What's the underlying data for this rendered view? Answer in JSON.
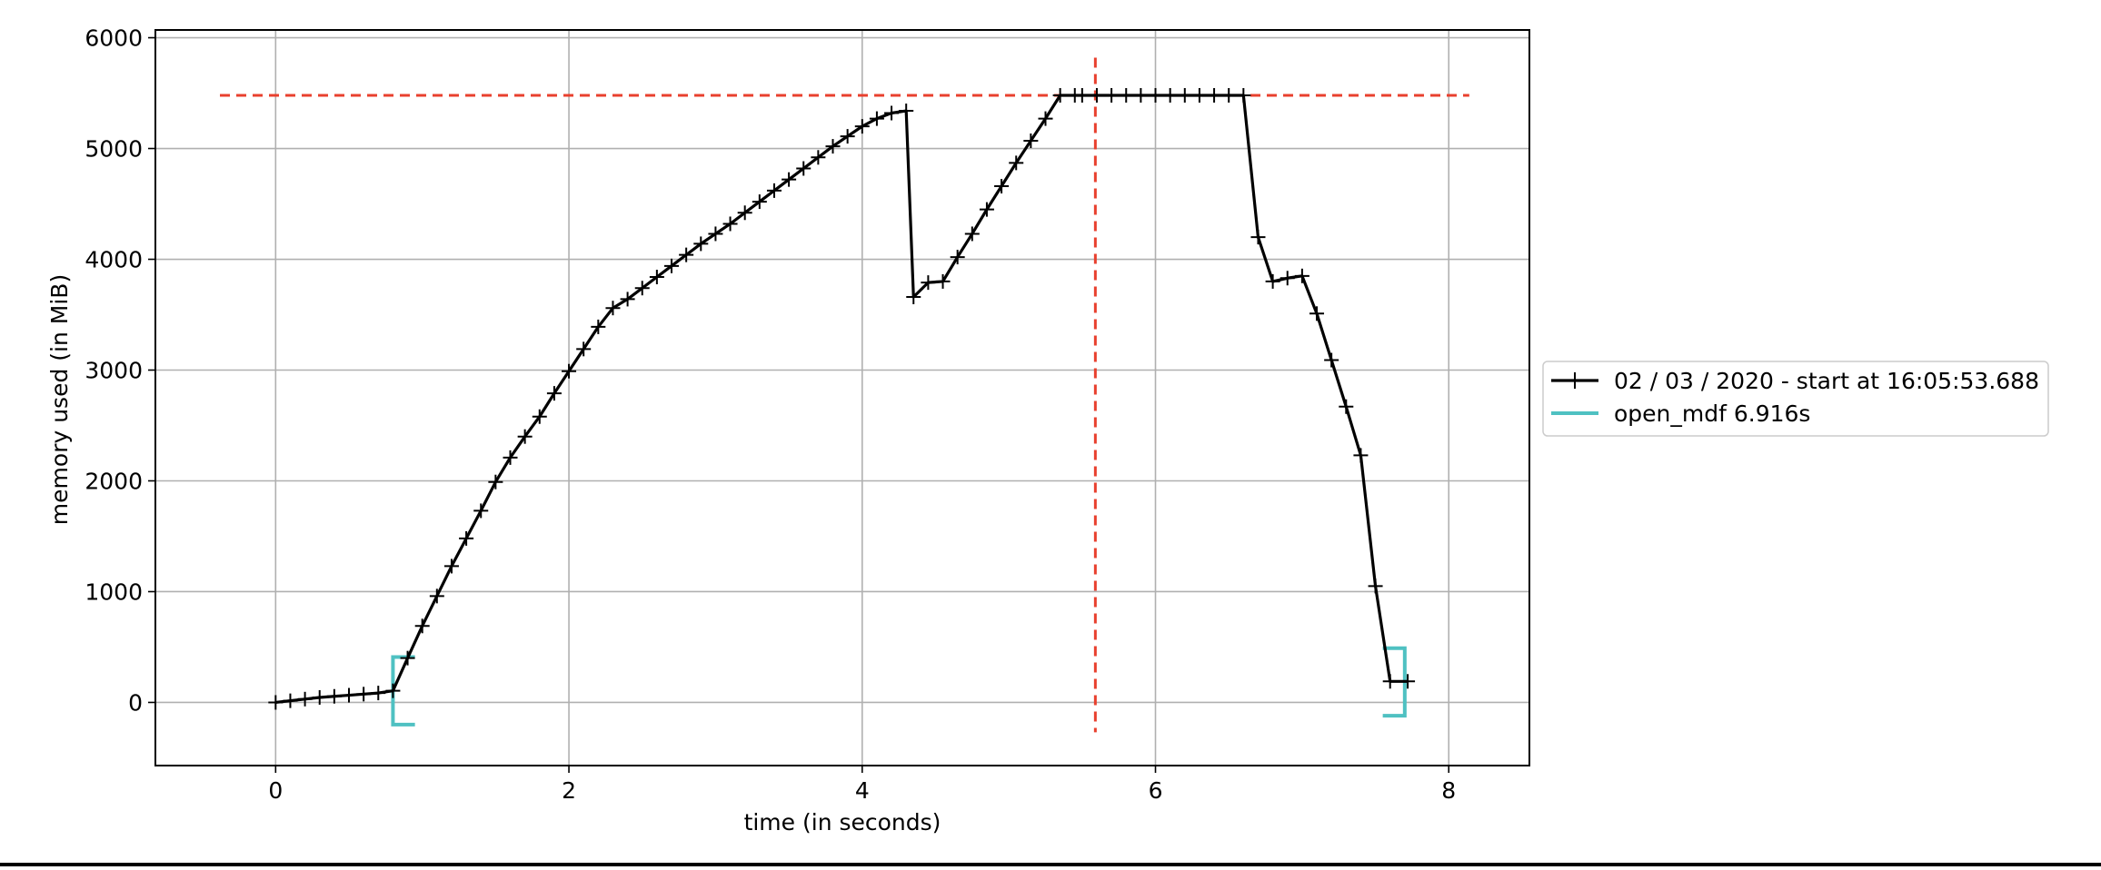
{
  "chart_data": {
    "type": "line",
    "title": "",
    "xlabel": "time (in seconds)",
    "ylabel": "memory used (in MiB)",
    "xlim": [
      -0.82,
      8.55
    ],
    "ylim": [
      -570,
      6070
    ],
    "xticks": [
      0,
      2,
      4,
      6,
      8
    ],
    "yticks": [
      0,
      1000,
      2000,
      3000,
      4000,
      5000,
      6000
    ],
    "grid": true,
    "legend_position": "center-right outside",
    "colors": {
      "series": "#000000",
      "function": "#4fc1c2",
      "peak": "#e8402e",
      "grid": "#b0b0b0"
    },
    "series": [
      {
        "name": "02 / 03 / 2020 - start at 16:05:53.688",
        "x": [
          0.0,
          0.1,
          0.2,
          0.3,
          0.4,
          0.5,
          0.6,
          0.7,
          0.8,
          0.9,
          1.0,
          1.1,
          1.2,
          1.3,
          1.4,
          1.5,
          1.6,
          1.7,
          1.8,
          1.9,
          2.0,
          2.1,
          2.2,
          2.3,
          2.4,
          2.5,
          2.6,
          2.7,
          2.8,
          2.9,
          3.0,
          3.1,
          3.2,
          3.3,
          3.4,
          3.5,
          3.6,
          3.7,
          3.8,
          3.9,
          4.0,
          4.1,
          4.2,
          4.3,
          4.35,
          4.45,
          4.55,
          4.65,
          4.75,
          4.85,
          4.95,
          5.05,
          5.15,
          5.25,
          5.35,
          5.45,
          5.5,
          5.6,
          5.7,
          5.8,
          5.9,
          6.0,
          6.1,
          6.2,
          6.3,
          6.4,
          6.5,
          6.6,
          6.7,
          6.8,
          6.9,
          7.0,
          7.1,
          7.2,
          7.3,
          7.4,
          7.5,
          7.6,
          7.72
        ],
        "values": [
          0,
          15,
          30,
          45,
          55,
          65,
          75,
          85,
          105,
          400,
          690,
          960,
          1230,
          1480,
          1730,
          1990,
          2210,
          2400,
          2580,
          2790,
          2990,
          3190,
          3390,
          3560,
          3640,
          3740,
          3840,
          3940,
          4040,
          4140,
          4230,
          4320,
          4420,
          4520,
          4620,
          4720,
          4820,
          4920,
          5020,
          5110,
          5200,
          5270,
          5320,
          5340,
          3660,
          3790,
          3800,
          4020,
          4230,
          4450,
          4660,
          4870,
          5070,
          5270,
          5480,
          5480,
          5480,
          5480,
          5480,
          5480,
          5480,
          5480,
          5480,
          5480,
          5480,
          5480,
          5480,
          5480,
          4200,
          3800,
          3830,
          3850,
          3510,
          3090,
          2670,
          2230,
          1050,
          190,
          190
        ]
      }
    ],
    "function_markers": [
      {
        "name": "open_mdf 6.916s",
        "x_start": 0.8,
        "x_end": 7.7,
        "y_start_low": -200,
        "y_start_high": 410,
        "y_end_low": -120,
        "y_end_high": 490
      }
    ],
    "peak_lines": {
      "memory": 5480,
      "time": 5.59
    }
  }
}
